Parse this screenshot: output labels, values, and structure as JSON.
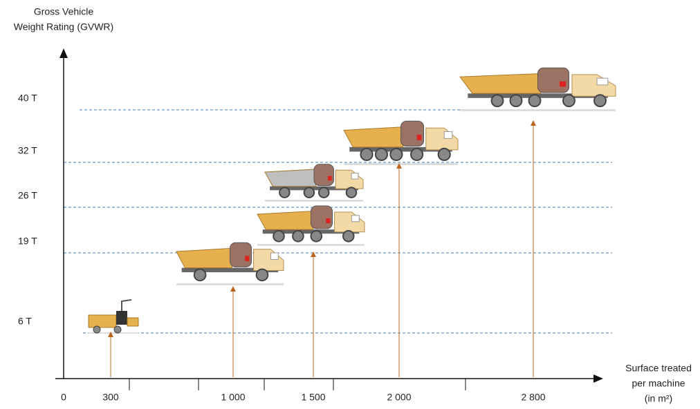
{
  "axes": {
    "y_label": [
      "Gross Vehicle",
      "Weight Rating (GVWR)"
    ],
    "x_label": [
      "Surface treated",
      "per machine",
      "(in m²)"
    ]
  },
  "y_levels": [
    "6 T",
    "19 T",
    "26 T",
    "32 T",
    "40 T"
  ],
  "x_ticks": [
    "0",
    "300",
    "1 000",
    "1 500",
    "2 000",
    "2 800"
  ]
}
